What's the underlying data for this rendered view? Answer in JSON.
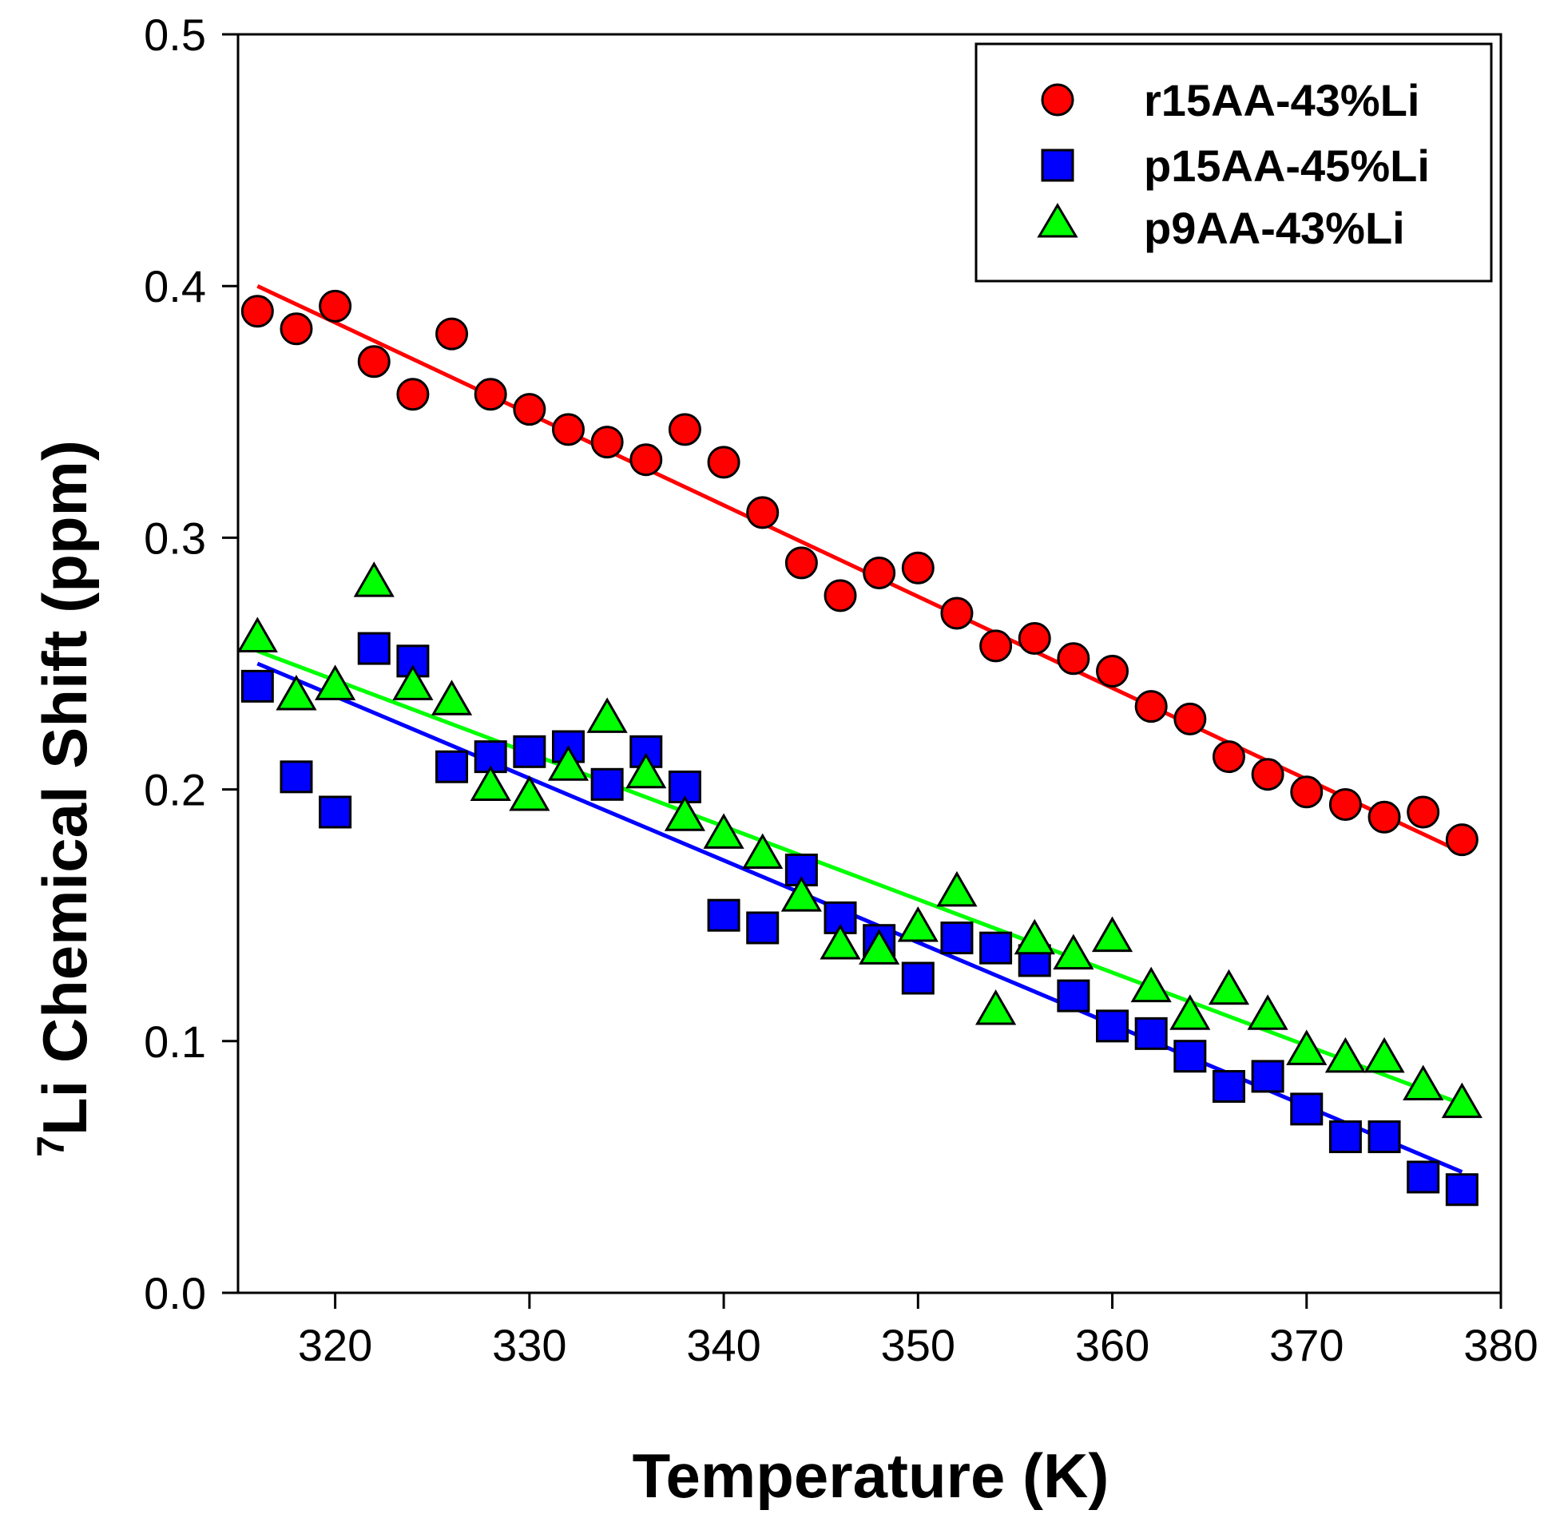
{
  "chart_data": {
    "type": "scatter",
    "title": "",
    "xlabel": "Temperature (K)",
    "ylabel_superscript": "7",
    "ylabel": "Li Chemical Shift (ppm)",
    "xlim": [
      315,
      380
    ],
    "ylim": [
      0.0,
      0.5
    ],
    "xticks": [
      320,
      330,
      340,
      350,
      360,
      370,
      380
    ],
    "xtick_labels": [
      "320",
      "330",
      "340",
      "350",
      "360",
      "370",
      "380"
    ],
    "yticks": [
      0.0,
      0.1,
      0.2,
      0.3,
      0.4,
      0.5
    ],
    "ytick_labels": [
      "0.0",
      "0.1",
      "0.2",
      "0.3",
      "0.4",
      "0.5"
    ],
    "grid": false,
    "legend_position": "top-right",
    "series": [
      {
        "name": "r15AA-43%Li",
        "marker": "circle",
        "color": "#ff0000",
        "fit_line": {
          "x": [
            316,
            378
          ],
          "y": [
            0.4,
            0.175
          ]
        },
        "x": [
          316,
          318,
          320,
          322,
          324,
          326,
          328,
          330,
          332,
          334,
          336,
          338,
          340,
          342,
          344,
          346,
          348,
          350,
          352,
          354,
          356,
          358,
          360,
          362,
          364,
          366,
          368,
          370,
          372,
          374,
          376,
          378
        ],
        "y": [
          0.39,
          0.383,
          0.392,
          0.37,
          0.357,
          0.381,
          0.357,
          0.351,
          0.343,
          0.338,
          0.331,
          0.343,
          0.33,
          0.31,
          0.29,
          0.277,
          0.286,
          0.288,
          0.27,
          0.257,
          0.26,
          0.252,
          0.247,
          0.233,
          0.228,
          0.213,
          0.206,
          0.199,
          0.194,
          0.189,
          0.191,
          0.18
        ]
      },
      {
        "name": "p15AA-45%Li",
        "marker": "square",
        "color": "#0000ff",
        "fit_line": {
          "x": [
            316,
            378
          ],
          "y": [
            0.25,
            0.048
          ]
        },
        "x": [
          316,
          318,
          320,
          322,
          324,
          326,
          328,
          330,
          332,
          334,
          336,
          338,
          340,
          342,
          344,
          346,
          348,
          350,
          352,
          354,
          356,
          358,
          360,
          362,
          364,
          366,
          368,
          370,
          372,
          374,
          376,
          378
        ],
        "y": [
          0.241,
          0.205,
          0.191,
          0.256,
          0.251,
          0.209,
          0.213,
          0.215,
          0.217,
          0.202,
          0.215,
          0.201,
          0.15,
          0.145,
          0.168,
          0.149,
          0.14,
          0.125,
          0.141,
          0.137,
          0.132,
          0.118,
          0.106,
          0.103,
          0.094,
          0.082,
          0.086,
          0.073,
          0.062,
          0.062,
          0.046,
          0.041
        ]
      },
      {
        "name": "p9AA-43%Li",
        "marker": "triangle",
        "color": "#00ff00",
        "fit_line": {
          "x": [
            316,
            378
          ],
          "y": [
            0.255,
            0.075
          ]
        },
        "x": [
          316,
          318,
          320,
          322,
          324,
          326,
          328,
          330,
          332,
          334,
          336,
          338,
          340,
          342,
          344,
          346,
          348,
          350,
          352,
          354,
          356,
          358,
          360,
          362,
          364,
          366,
          368,
          370,
          372,
          374,
          376,
          378
        ],
        "y": [
          0.26,
          0.237,
          0.241,
          0.282,
          0.241,
          0.235,
          0.201,
          0.197,
          0.209,
          0.228,
          0.206,
          0.189,
          0.182,
          0.174,
          0.157,
          0.138,
          0.136,
          0.145,
          0.159,
          0.112,
          0.14,
          0.134,
          0.141,
          0.121,
          0.11,
          0.12,
          0.11,
          0.096,
          0.093,
          0.093,
          0.082,
          0.075
        ]
      }
    ]
  }
}
